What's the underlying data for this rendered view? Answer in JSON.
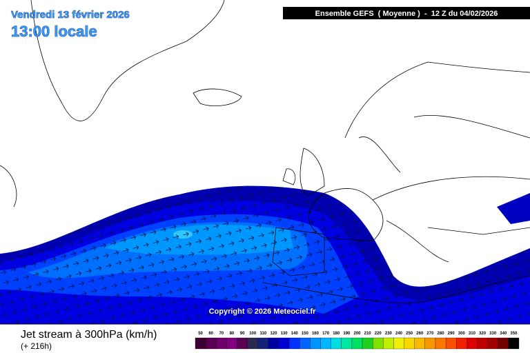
{
  "header": {
    "date": "Vendredi 13 février 2026",
    "time": "13:00 locale",
    "run": "Ensemble GEFS  ( Moyenne )  -  12 Z du 04/02/2026"
  },
  "copyright": "Copyright © 2026 Meteociel.fr",
  "footer": {
    "title": "Jet stream à 300hPa (km/h)",
    "lead": "(+ 216h)"
  },
  "scale": {
    "values": [
      50,
      60,
      70,
      80,
      90,
      100,
      110,
      120,
      130,
      140,
      150,
      160,
      170,
      180,
      190,
      200,
      210,
      220,
      230,
      240,
      250,
      260,
      270,
      280,
      290,
      300,
      310,
      320,
      330,
      340,
      350
    ],
    "colors": [
      "#3c0032",
      "#5a0050",
      "#70006a",
      "#800080",
      "#5a0050",
      "#2a2a50",
      "#14207a",
      "#0000a0",
      "#0000d2",
      "#0032ff",
      "#0064ff",
      "#0094ff",
      "#00b8ff",
      "#00dce0",
      "#00e8a0",
      "#00e060",
      "#20d020",
      "#80e000",
      "#c0f000",
      "#f0f000",
      "#f8d800",
      "#f8b800",
      "#f89800",
      "#f87800",
      "#f85000",
      "#f02000",
      "#e00000",
      "#c00000",
      "#a00000",
      "#700000",
      "#000000"
    ]
  }
}
